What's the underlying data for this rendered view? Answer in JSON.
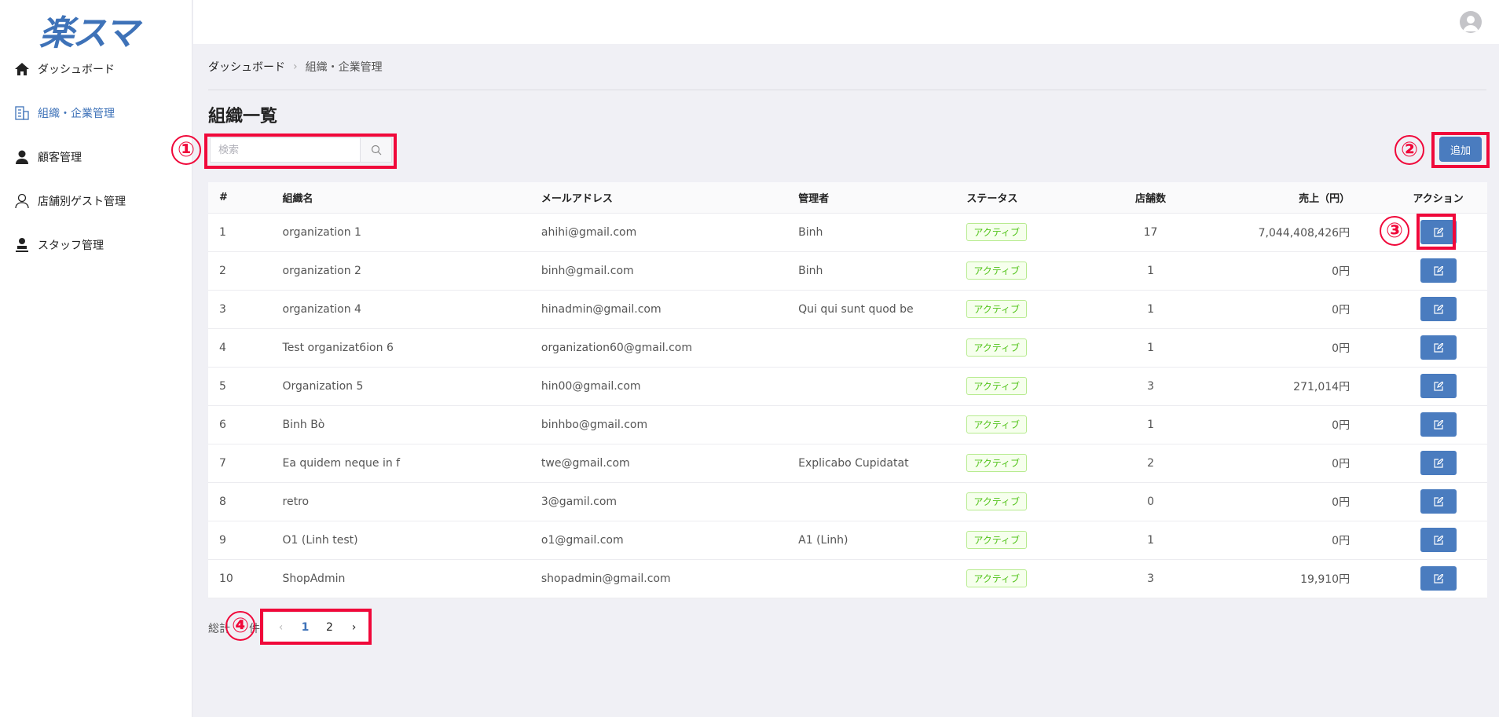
{
  "logo": "楽スマ",
  "sidebar": {
    "items": [
      {
        "label": "ダッシュボード",
        "icon": "home-icon"
      },
      {
        "label": "組織・企業管理",
        "icon": "building-icon",
        "active": true
      },
      {
        "label": "顧客管理",
        "icon": "user-icon"
      },
      {
        "label": "店舗別ゲスト管理",
        "icon": "user-outline-icon"
      },
      {
        "label": "スタッフ管理",
        "icon": "stamp-icon"
      }
    ]
  },
  "breadcrumb": {
    "home": "ダッシュボード",
    "current": "組織・企業管理"
  },
  "title": "組織一覧",
  "search": {
    "placeholder": "検索"
  },
  "add_label": "追加",
  "table": {
    "headers": [
      "#",
      "組織名",
      "メールアドレス",
      "管理者",
      "ステータス",
      "店舗数",
      "売上（円）",
      "アクション"
    ],
    "rows": [
      [
        "1",
        "organization 1",
        "ahihi@gmail.com",
        "Binh",
        "アクティブ",
        "17",
        "7,044,408,426円"
      ],
      [
        "2",
        "organization 2",
        "binh@gmail.com",
        "Binh",
        "アクティブ",
        "1",
        "0円"
      ],
      [
        "3",
        "organization 4",
        "hinadmin@gmail.com",
        "Qui qui sunt quod be",
        "アクティブ",
        "1",
        "0円"
      ],
      [
        "4",
        "Test organizat6ion 6",
        "organization60@gmail.com",
        "",
        "アクティブ",
        "1",
        "0円"
      ],
      [
        "5",
        "Organization 5",
        "hin00@gmail.com",
        "",
        "アクティブ",
        "3",
        "271,014円"
      ],
      [
        "6",
        "Binh Bò",
        "binhbo@gmail.com",
        "",
        "アクティブ",
        "1",
        "0円"
      ],
      [
        "7",
        "Ea quidem neque in f",
        "twe@gmail.com",
        "Explicabo Cupidatat",
        "アクティブ",
        "2",
        "0円"
      ],
      [
        "8",
        "retro",
        "3@gamil.com",
        "",
        "アクティブ",
        "0",
        "0円"
      ],
      [
        "9",
        "O1 (Linh test)",
        "o1@gmail.com",
        "A1 (Linh)",
        "アクティブ",
        "1",
        "0円"
      ],
      [
        "10",
        "ShopAdmin",
        "shopadmin@gmail.com",
        "",
        "アクティブ",
        "3",
        "19,910円"
      ]
    ]
  },
  "pagination": {
    "total_prefix": "総計",
    "total_suffix": "件",
    "prev": "‹",
    "pages": [
      "1",
      "2"
    ],
    "current": "1",
    "next": "›"
  },
  "annotations": [
    "①",
    "②",
    "③",
    "④"
  ],
  "colors": {
    "accent": "#4a7cbf",
    "annotation": "#f0083a",
    "status": "#52c41a"
  }
}
